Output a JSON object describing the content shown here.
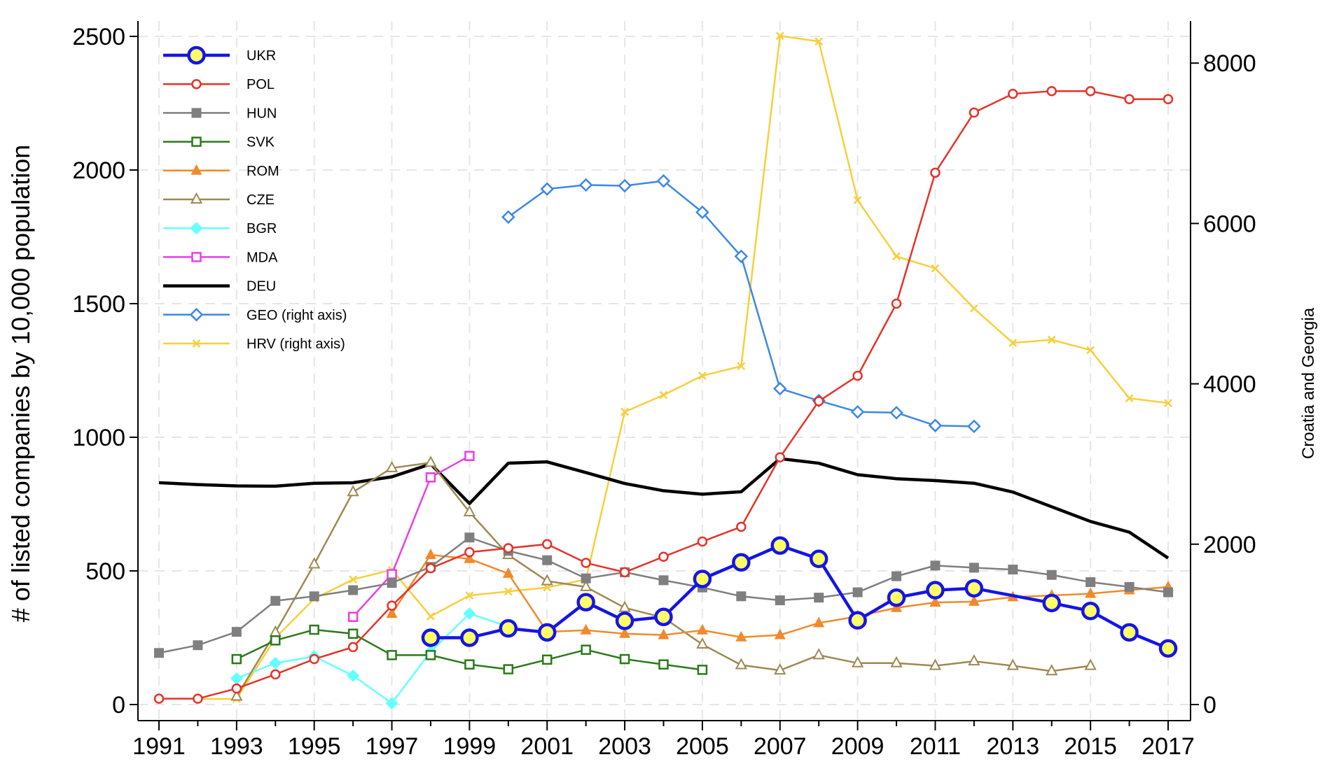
{
  "chart_data": {
    "type": "line",
    "title": "",
    "xlabel": "",
    "ylabel": "# of listed companies by 10,000 population",
    "y2label": "Croatia and Georgia",
    "xlim": [
      1991,
      2017
    ],
    "ylim": [
      0,
      2500
    ],
    "y2lim": [
      0,
      8333.33
    ],
    "x_ticks": [
      1991,
      1993,
      1995,
      1997,
      1999,
      2001,
      2003,
      2005,
      2007,
      2009,
      2011,
      2013,
      2015,
      2017
    ],
    "y_ticks": [
      0,
      500,
      1000,
      1500,
      2000,
      2500
    ],
    "y2_ticks": [
      0,
      2000,
      4000,
      6000,
      8000
    ],
    "grid": true,
    "legend_position": "top-left",
    "series": [
      {
        "name": "UKR",
        "axis": "left",
        "color": "#1515e6",
        "marker": "circle-yellow",
        "x": [
          1998,
          1999,
          2000,
          2001,
          2002,
          2003,
          2004,
          2005,
          2006,
          2007,
          2008,
          2009,
          2010,
          2011,
          2012,
          2014,
          2015,
          2016,
          2017
        ],
        "y": [
          250,
          250,
          285,
          270,
          383,
          313,
          328,
          470,
          532,
          595,
          545,
          315,
          400,
          428,
          435,
          380,
          350,
          270,
          210
        ]
      },
      {
        "name": "POL",
        "axis": "left",
        "color": "#e5332a",
        "marker": "circle-open",
        "x": [
          1991,
          1992,
          1993,
          1994,
          1995,
          1996,
          1997,
          1998,
          1999,
          2000,
          2001,
          2002,
          2003,
          2004,
          2005,
          2006,
          2007,
          2008,
          2009,
          2010,
          2011,
          2012,
          2013,
          2014,
          2015,
          2016,
          2017
        ],
        "y": [
          22,
          22,
          60,
          113,
          170,
          215,
          370,
          510,
          570,
          585,
          600,
          530,
          495,
          553,
          610,
          665,
          925,
          1135,
          1230,
          1500,
          1990,
          2215,
          2285,
          2295,
          2295,
          2265,
          2265
        ]
      },
      {
        "name": "HUN",
        "axis": "left",
        "color": "#7f7f7f",
        "marker": "square-filled",
        "x": [
          1991,
          1992,
          1993,
          1994,
          1995,
          1996,
          1997,
          1998,
          1999,
          2000,
          2001,
          2002,
          2003,
          2004,
          2005,
          2006,
          2007,
          2008,
          2009,
          2010,
          2011,
          2012,
          2013,
          2014,
          2015,
          2016,
          2017
        ],
        "y": [
          193,
          222,
          272,
          388,
          405,
          428,
          455,
          515,
          625,
          575,
          540,
          472,
          495,
          465,
          438,
          405,
          390,
          400,
          420,
          480,
          520,
          512,
          505,
          485,
          458,
          440,
          420
        ]
      },
      {
        "name": "SVK",
        "axis": "left",
        "color": "#2a7a1a",
        "marker": "square-open",
        "x": [
          1993,
          1994,
          1995,
          1996,
          1997,
          1998,
          1999,
          2000,
          2001,
          2002,
          2003,
          2004,
          2005
        ],
        "y": [
          170,
          240,
          280,
          265,
          185,
          185,
          150,
          132,
          168,
          205,
          170,
          150,
          130
        ]
      },
      {
        "name": "ROM",
        "axis": "left",
        "color": "#f08a2b",
        "marker": "triangle-filled",
        "x": [
          1997,
          1998,
          1999,
          2000,
          2001,
          2002,
          2003,
          2004,
          2005,
          2006,
          2007,
          2008,
          2009,
          2010,
          2011,
          2012,
          2013,
          2014,
          2015,
          2016,
          2017
        ],
        "y": [
          340,
          560,
          545,
          490,
          272,
          278,
          265,
          260,
          278,
          252,
          260,
          305,
          330,
          362,
          382,
          385,
          402,
          408,
          415,
          428,
          440
        ]
      },
      {
        "name": "CZE",
        "axis": "left",
        "color": "#9c8a53",
        "marker": "triangle-open",
        "x": [
          1993,
          1994,
          1995,
          1996,
          1997,
          1998,
          1999,
          2000,
          2001,
          2002,
          2003,
          2004,
          2005,
          2006,
          2007,
          2008,
          2009,
          2010,
          2011,
          2012,
          2013,
          2014,
          2015
        ],
        "y": [
          30,
          270,
          525,
          795,
          885,
          905,
          720,
          560,
          462,
          440,
          362,
          325,
          225,
          148,
          128,
          185,
          155,
          155,
          145,
          162,
          145,
          125,
          145
        ]
      },
      {
        "name": "BGR",
        "axis": "left",
        "color": "#66ffff",
        "marker": "diamond-filled",
        "x": [
          1993,
          1994,
          1995,
          1996,
          1997,
          1998,
          1999,
          2000
        ],
        "y": [
          98,
          155,
          180,
          108,
          5,
          198,
          340,
          292
        ]
      },
      {
        "name": "MDA",
        "axis": "left",
        "color": "#e83ee8",
        "marker": "square-open",
        "x": [
          1996,
          1997,
          1998,
          1999
        ],
        "y": [
          328,
          488,
          850,
          930
        ]
      },
      {
        "name": "DEU",
        "axis": "left",
        "color": "#000000",
        "marker": "none",
        "x": [
          1991,
          1992,
          1993,
          1994,
          1995,
          1996,
          1997,
          1998,
          1999,
          2000,
          2001,
          2002,
          2003,
          2004,
          2005,
          2006,
          2007,
          2008,
          2009,
          2010,
          2011,
          2012,
          2013,
          2014,
          2015,
          2016,
          2017
        ],
        "y": [
          830,
          823,
          818,
          817,
          828,
          830,
          852,
          900,
          752,
          903,
          908,
          868,
          827,
          800,
          787,
          796,
          920,
          903,
          860,
          845,
          838,
          828,
          795,
          740,
          685,
          645,
          548
        ]
      },
      {
        "name": "GEO (right axis)",
        "axis": "right",
        "color": "#3d87e6",
        "marker": "diamond-open",
        "x": [
          2000,
          2001,
          2002,
          2003,
          2004,
          2005,
          2006,
          2007,
          2008,
          2009,
          2010,
          2011,
          2012
        ],
        "y": [
          6080,
          6430,
          6480,
          6470,
          6530,
          6140,
          5590,
          3940,
          3790,
          3650,
          3640,
          3480,
          3470
        ]
      },
      {
        "name": "HRV (right axis)",
        "axis": "right",
        "color": "#f7cf3c",
        "marker": "x",
        "x": [
          1992,
          1993,
          1994,
          1995,
          1996,
          1997,
          1998,
          1999,
          2000,
          2001,
          2002,
          2003,
          2004,
          2005,
          2006,
          2007,
          2008,
          2009,
          2010,
          2011,
          2012,
          2013,
          2014,
          2015,
          2016,
          2017
        ],
        "y": [
          70,
          70,
          830,
          1320,
          1560,
          1680,
          1100,
          1360,
          1410,
          1460,
          1560,
          3650,
          3860,
          4100,
          4220,
          8340,
          8270,
          6290,
          5590,
          5440,
          4940,
          4510,
          4550,
          4420,
          3820,
          3760
        ]
      }
    ]
  }
}
